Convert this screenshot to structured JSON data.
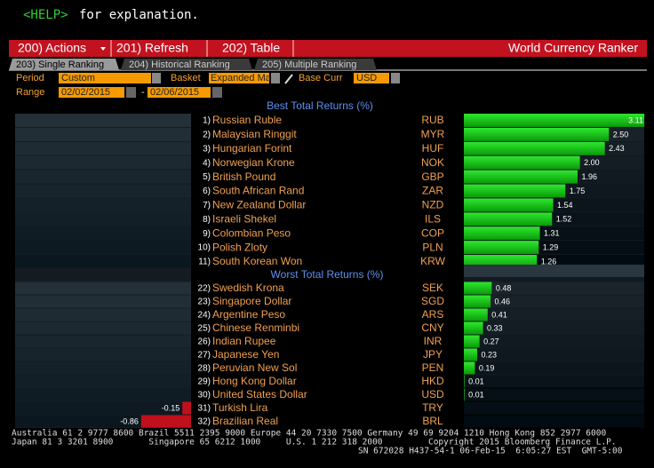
{
  "help_line": {
    "key": "<HELP>",
    "text": "for explanation."
  },
  "toolbar": {
    "actions": "200) Actions",
    "refresh": "201) Refresh",
    "table": "202) Table",
    "title": "World Currency Ranker"
  },
  "tabs": [
    "203) Single Ranking",
    "204) Historical Ranking",
    "205) Multiple Ranking"
  ],
  "filters": {
    "period_label": "Period",
    "period": "Custom",
    "basket_label": "Basket",
    "basket": "Expanded Ma",
    "base_label": "Base Curr",
    "base": "USD",
    "range_label": "Range",
    "start": "02/02/2015",
    "range_sep": "-",
    "end": "02/06/2015"
  },
  "best": {
    "title": "Best Total Returns (%)",
    "rows": [
      {
        "rank": "1)",
        "name": "Russian Ruble",
        "code": "RUB",
        "value": 3.11,
        "value_label": "3.11"
      },
      {
        "rank": "2)",
        "name": "Malaysian Ringgit",
        "code": "MYR",
        "value": 2.5,
        "value_label": "2.50"
      },
      {
        "rank": "3)",
        "name": "Hungarian Forint",
        "code": "HUF",
        "value": 2.43,
        "value_label": "2.43"
      },
      {
        "rank": "4)",
        "name": "Norwegian Krone",
        "code": "NOK",
        "value": 2.0,
        "value_label": "2.00"
      },
      {
        "rank": "5)",
        "name": "British Pound",
        "code": "GBP",
        "value": 1.96,
        "value_label": "1.96"
      },
      {
        "rank": "6)",
        "name": "South African Rand",
        "code": "ZAR",
        "value": 1.75,
        "value_label": "1.75"
      },
      {
        "rank": "7)",
        "name": "New Zealand Dollar",
        "code": "NZD",
        "value": 1.54,
        "value_label": "1.54"
      },
      {
        "rank": "8)",
        "name": "Israeli Shekel",
        "code": "ILS",
        "value": 1.52,
        "value_label": "1.52"
      },
      {
        "rank": "9)",
        "name": "Colombian Peso",
        "code": "COP",
        "value": 1.31,
        "value_label": "1.31"
      },
      {
        "rank": "10)",
        "name": "Polish Zloty",
        "code": "PLN",
        "value": 1.29,
        "value_label": "1.29"
      },
      {
        "rank": "11)",
        "name": "South Korean Won",
        "code": "KRW",
        "value": 1.26,
        "value_label": "1.26"
      }
    ]
  },
  "worst": {
    "title": "Worst Total Returns (%)",
    "rows": [
      {
        "rank": "22)",
        "name": "Swedish Krona",
        "code": "SEK",
        "value": 0.48,
        "value_label": "0.48"
      },
      {
        "rank": "23)",
        "name": "Singapore Dollar",
        "code": "SGD",
        "value": 0.46,
        "value_label": "0.46"
      },
      {
        "rank": "24)",
        "name": "Argentine Peso",
        "code": "ARS",
        "value": 0.41,
        "value_label": "0.41"
      },
      {
        "rank": "25)",
        "name": "Chinese Renminbi",
        "code": "CNY",
        "value": 0.33,
        "value_label": "0.33"
      },
      {
        "rank": "26)",
        "name": "Indian Rupee",
        "code": "INR",
        "value": 0.27,
        "value_label": "0.27"
      },
      {
        "rank": "27)",
        "name": "Japanese Yen",
        "code": "JPY",
        "value": 0.23,
        "value_label": "0.23"
      },
      {
        "rank": "28)",
        "name": "Peruvian New Sol",
        "code": "PEN",
        "value": 0.19,
        "value_label": "0.19"
      },
      {
        "rank": "29)",
        "name": "Hong Kong Dollar",
        "code": "HKD",
        "value": 0.01,
        "value_label": "0.01"
      },
      {
        "rank": "30)",
        "name": "United States Dollar",
        "code": "USD",
        "value": 0.01,
        "value_label": "0.01"
      },
      {
        "rank": "31)",
        "name": "Turkish Lira",
        "code": "TRY",
        "value": -0.15,
        "value_label": "-0.15"
      },
      {
        "rank": "32)",
        "name": "Brazilian Real",
        "code": "BRL",
        "value": -0.86,
        "value_label": "-0.86"
      }
    ]
  },
  "footer": [
    "Australia 61 2 9777 8600 Brazil 5511 2395 9000 Europe 44 20 7330 7500 Germany 49 69 9204 1210 Hong Kong 852 2977 6000",
    "Japan 81 3 3201 8900       Singapore 65 6212 1000     U.S. 1 212 318 2000         Copyright 2015 Bloomberg Finance L.P.",
    "SN 672028 H437-54-1 06-Feb-15  6:05:27 EST  GMT-5:00"
  ]
}
